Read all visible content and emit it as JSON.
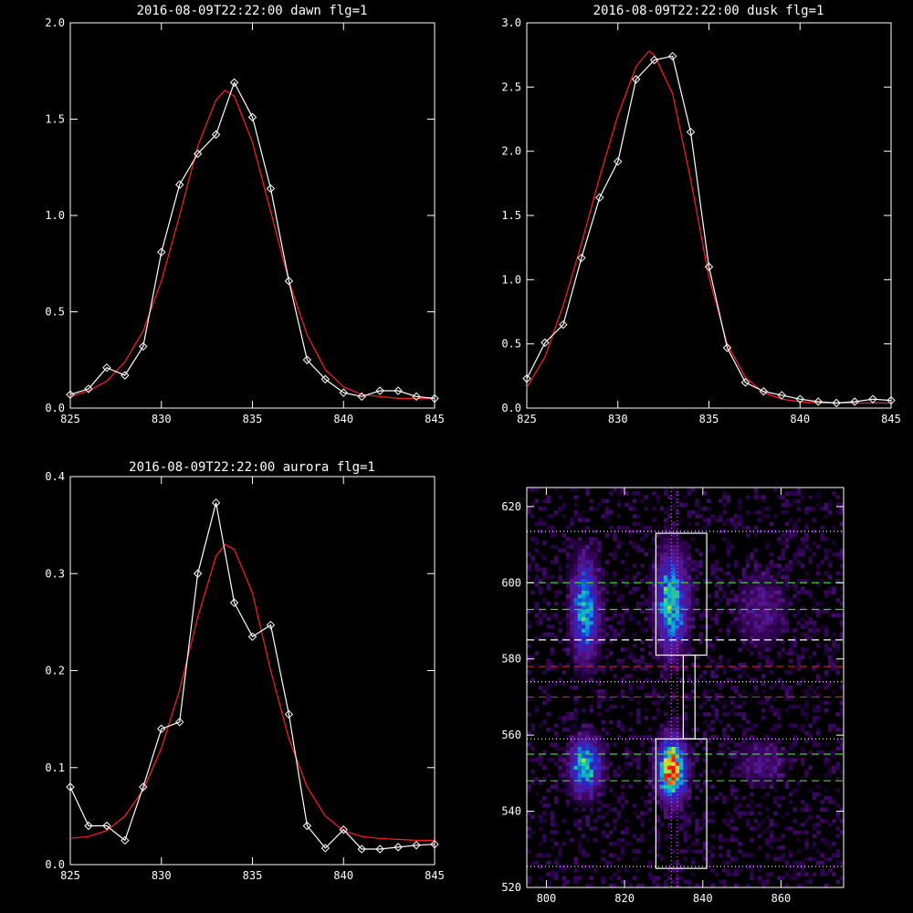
{
  "chart_data": [
    {
      "type": "line",
      "title": "2016-08-09T22:22:00 dawn flg=1",
      "xlim": [
        825,
        845
      ],
      "ylim": [
        0,
        2.0
      ],
      "xticks": [
        "825",
        "830",
        "835",
        "840",
        "845"
      ],
      "yticks": [
        "0.0",
        "0.5",
        "1.0",
        "1.5",
        "2.0"
      ],
      "xtick_values": [
        825,
        830,
        835,
        840,
        845
      ],
      "ytick_values": [
        0,
        0.5,
        1.0,
        1.5,
        2.0
      ],
      "series": [
        {
          "color": "#ffffff",
          "marker": "diamond",
          "x": [
            825,
            826,
            827,
            828,
            829,
            830,
            831,
            832,
            833,
            834,
            835,
            836,
            837,
            838,
            839,
            840,
            841,
            842,
            843,
            844,
            845
          ],
          "y": [
            0.07,
            0.1,
            0.21,
            0.17,
            0.32,
            0.81,
            1.16,
            1.32,
            1.42,
            1.69,
            1.51,
            1.14,
            0.66,
            0.25,
            0.15,
            0.08,
            0.06,
            0.09,
            0.09,
            0.06,
            0.05
          ]
        },
        {
          "color": "#ff2020",
          "marker": "none",
          "x": [
            825,
            826,
            827,
            828,
            829,
            830,
            831,
            832,
            833,
            833.5,
            834,
            835,
            836,
            837,
            838,
            839,
            840,
            841,
            842,
            843,
            844,
            845
          ],
          "y": [
            0.06,
            0.09,
            0.14,
            0.24,
            0.4,
            0.66,
            1.0,
            1.36,
            1.6,
            1.65,
            1.62,
            1.38,
            1.02,
            0.66,
            0.38,
            0.2,
            0.11,
            0.07,
            0.06,
            0.05,
            0.05,
            0.05
          ]
        }
      ]
    },
    {
      "type": "line",
      "title": "2016-08-09T22:22:00 dusk flg=1",
      "xlim": [
        825,
        845
      ],
      "ylim": [
        0,
        3.0
      ],
      "xticks": [
        "825",
        "830",
        "835",
        "840",
        "845"
      ],
      "yticks": [
        "0.0",
        "0.5",
        "1.0",
        "1.5",
        "2.0",
        "2.5",
        "3.0"
      ],
      "xtick_values": [
        825,
        830,
        835,
        840,
        845
      ],
      "ytick_values": [
        0,
        0.5,
        1.0,
        1.5,
        2.0,
        2.5,
        3.0
      ],
      "series": [
        {
          "color": "#ffffff",
          "marker": "diamond",
          "x": [
            825,
            826,
            827,
            828,
            829,
            830,
            831,
            832,
            833,
            834,
            835,
            836,
            837,
            838,
            839,
            840,
            841,
            842,
            843,
            844,
            845
          ],
          "y": [
            0.23,
            0.51,
            0.65,
            1.17,
            1.64,
            1.92,
            2.56,
            2.71,
            2.74,
            2.15,
            1.1,
            0.47,
            0.2,
            0.13,
            0.1,
            0.07,
            0.05,
            0.04,
            0.05,
            0.07,
            0.06
          ]
        },
        {
          "color": "#ff2020",
          "marker": "none",
          "x": [
            825,
            826,
            827,
            828,
            829,
            830,
            831,
            831.7,
            832,
            833,
            834,
            835,
            836,
            837,
            838,
            839,
            840,
            841,
            842,
            843,
            844,
            845
          ],
          "y": [
            0.16,
            0.4,
            0.8,
            1.28,
            1.8,
            2.28,
            2.66,
            2.78,
            2.75,
            2.45,
            1.78,
            1.02,
            0.5,
            0.24,
            0.12,
            0.07,
            0.05,
            0.04,
            0.04,
            0.04,
            0.04,
            0.04
          ]
        }
      ]
    },
    {
      "type": "line",
      "title": "2016-08-09T22:22:00 aurora flg=1",
      "xlim": [
        825,
        845
      ],
      "ylim": [
        0,
        0.4
      ],
      "xticks": [
        "825",
        "830",
        "835",
        "840",
        "845"
      ],
      "yticks": [
        "0.0",
        "0.1",
        "0.2",
        "0.3",
        "0.4"
      ],
      "xtick_values": [
        825,
        830,
        835,
        840,
        845
      ],
      "ytick_values": [
        0,
        0.1,
        0.2,
        0.3,
        0.4
      ],
      "series": [
        {
          "color": "#ffffff",
          "marker": "diamond",
          "x": [
            825,
            826,
            827,
            828,
            829,
            830,
            831,
            832,
            833,
            834,
            835,
            836,
            837,
            838,
            839,
            840,
            841,
            842,
            843,
            844,
            845
          ],
          "y": [
            0.08,
            0.04,
            0.04,
            0.025,
            0.08,
            0.14,
            0.147,
            0.3,
            0.373,
            0.27,
            0.235,
            0.247,
            0.155,
            0.04,
            0.017,
            0.036,
            0.016,
            0.016,
            0.018,
            0.02,
            0.021
          ]
        },
        {
          "color": "#ff2020",
          "marker": "none",
          "x": [
            825,
            826,
            827,
            828,
            829,
            830,
            831,
            832,
            833,
            833.5,
            834,
            835,
            836,
            837,
            838,
            839,
            840,
            841,
            842,
            843,
            844,
            845
          ],
          "y": [
            0.027,
            0.029,
            0.035,
            0.05,
            0.077,
            0.12,
            0.18,
            0.255,
            0.318,
            0.33,
            0.325,
            0.28,
            0.2,
            0.13,
            0.08,
            0.05,
            0.035,
            0.029,
            0.027,
            0.026,
            0.025,
            0.025
          ]
        }
      ]
    },
    {
      "type": "heatmap",
      "title": "",
      "xlim": [
        795,
        876
      ],
      "ylim": [
        520,
        625
      ],
      "xticks": [
        "800",
        "820",
        "840",
        "860"
      ],
      "yticks": [
        "520",
        "540",
        "560",
        "580",
        "600",
        "620"
      ],
      "xtick_values": [
        800,
        820,
        840,
        860
      ],
      "ytick_values": [
        520,
        540,
        560,
        580,
        600,
        620
      ],
      "blobs": [
        {
          "x": 810,
          "y": 593,
          "sx": 2.2,
          "sy": 8,
          "amp": 0.55
        },
        {
          "x": 832,
          "y": 595,
          "sx": 2.5,
          "sy": 8,
          "amp": 0.62
        },
        {
          "x": 810,
          "y": 552,
          "sx": 2.5,
          "sy": 4.5,
          "amp": 0.6
        },
        {
          "x": 832,
          "y": 551,
          "sx": 2.2,
          "sy": 5,
          "amp": 1.0
        },
        {
          "x": 855,
          "y": 593,
          "sx": 4,
          "sy": 6,
          "amp": 0.16
        },
        {
          "x": 855,
          "y": 553,
          "sx": 4,
          "sy": 4,
          "amp": 0.14
        }
      ],
      "boxes": [
        {
          "x0": 828,
          "x1": 841,
          "y0": 581,
          "y1": 613
        },
        {
          "x0": 828,
          "x1": 841,
          "y0": 525,
          "y1": 559
        },
        {
          "x0": 835,
          "x1": 838,
          "y0": 559,
          "y1": 581
        }
      ],
      "hlines": [
        {
          "y": 613.5,
          "color": "#ffffff",
          "style": "dotted"
        },
        {
          "y": 600,
          "color": "#40d040",
          "style": "dashed"
        },
        {
          "y": 593,
          "color": "#40d040",
          "style": "dashed"
        },
        {
          "y": 585,
          "color": "#ffffff",
          "style": "dashed"
        },
        {
          "y": 578,
          "color": "#e02020",
          "style": "dashed"
        },
        {
          "y": 574,
          "color": "#ffffff",
          "style": "dotted"
        },
        {
          "y": 570,
          "color": "#e02020",
          "style": "dashed"
        },
        {
          "y": 559,
          "color": "#ffffff",
          "style": "dotted"
        },
        {
          "y": 555,
          "color": "#40d040",
          "style": "dashed"
        },
        {
          "y": 548,
          "color": "#40d040",
          "style": "dashed"
        },
        {
          "y": 525.5,
          "color": "#ffffff",
          "style": "dotted"
        }
      ],
      "vlines": [
        {
          "x": 832,
          "color": "#ff40ff",
          "style": "dotted"
        },
        {
          "x": 833.5,
          "color": "#ff40ff",
          "style": "dotted"
        }
      ]
    }
  ]
}
